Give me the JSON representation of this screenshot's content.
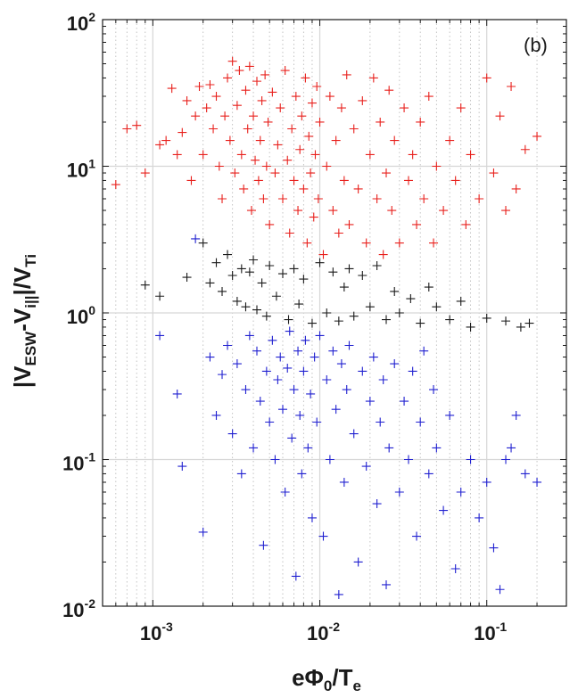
{
  "chart_data": {
    "type": "scatter",
    "title": "",
    "panel_label": "(b)",
    "xscale": "log",
    "yscale": "log",
    "xlim": [
      0.0005,
      0.3
    ],
    "ylim": [
      0.01,
      100
    ],
    "xticks": [
      {
        "base": "10",
        "exp": "-3",
        "value": 0.001
      },
      {
        "base": "10",
        "exp": "-2",
        "value": 0.01
      },
      {
        "base": "10",
        "exp": "-1",
        "value": 0.1
      }
    ],
    "yticks": [
      {
        "base": "10",
        "exp": "-2",
        "value": 0.01
      },
      {
        "base": "10",
        "exp": "-1",
        "value": 0.1
      },
      {
        "base": "10",
        "exp": "0",
        "value": 1
      },
      {
        "base": "10",
        "exp": "1",
        "value": 10
      },
      {
        "base": "10",
        "exp": "2",
        "value": 100
      }
    ],
    "xlabel": {
      "pre": "e",
      "phi": "Φ",
      "sub0": "0",
      "mid": "/T",
      "sube": "e"
    },
    "ylabel": {
      "bar1": "|V",
      "sub1": "ESW",
      "dash": "-V",
      "sub2": "i||",
      "bar2": "|/V",
      "sub3": "Ti"
    },
    "grid": true,
    "marker": "+",
    "series": [
      {
        "name": "red",
        "color": "#e8201c",
        "points": [
          [
            0.0006,
            7.5
          ],
          [
            0.0007,
            18
          ],
          [
            0.0008,
            19
          ],
          [
            0.0009,
            9
          ],
          [
            0.0011,
            14
          ],
          [
            0.0012,
            15
          ],
          [
            0.0013,
            34
          ],
          [
            0.0014,
            12
          ],
          [
            0.0015,
            17
          ],
          [
            0.0016,
            28
          ],
          [
            0.0017,
            8
          ],
          [
            0.0018,
            22
          ],
          [
            0.0019,
            35
          ],
          [
            0.002,
            12
          ],
          [
            0.0021,
            25
          ],
          [
            0.0022,
            36
          ],
          [
            0.0023,
            18
          ],
          [
            0.0024,
            30
          ],
          [
            0.0025,
            10
          ],
          [
            0.0026,
            6
          ],
          [
            0.0027,
            22
          ],
          [
            0.0028,
            40
          ],
          [
            0.0029,
            15
          ],
          [
            0.003,
            52
          ],
          [
            0.0031,
            9
          ],
          [
            0.0032,
            26
          ],
          [
            0.0033,
            45
          ],
          [
            0.0034,
            12
          ],
          [
            0.0035,
            7
          ],
          [
            0.0036,
            33
          ],
          [
            0.0037,
            18
          ],
          [
            0.0038,
            48
          ],
          [
            0.0039,
            5
          ],
          [
            0.004,
            22
          ],
          [
            0.0041,
            11
          ],
          [
            0.0042,
            38
          ],
          [
            0.0043,
            8
          ],
          [
            0.0044,
            15
          ],
          [
            0.0045,
            28
          ],
          [
            0.0046,
            6
          ],
          [
            0.0047,
            42
          ],
          [
            0.0048,
            10
          ],
          [
            0.0049,
            20
          ],
          [
            0.005,
            4
          ],
          [
            0.0052,
            32
          ],
          [
            0.0054,
            9
          ],
          [
            0.0056,
            14
          ],
          [
            0.0058,
            25
          ],
          [
            0.006,
            6
          ],
          [
            0.0062,
            45
          ],
          [
            0.0064,
            11
          ],
          [
            0.0066,
            3.5
          ],
          [
            0.0068,
            18
          ],
          [
            0.007,
            8
          ],
          [
            0.0072,
            30
          ],
          [
            0.0074,
            5
          ],
          [
            0.0076,
            13
          ],
          [
            0.0078,
            22
          ],
          [
            0.008,
            7
          ],
          [
            0.0082,
            40
          ],
          [
            0.0084,
            3
          ],
          [
            0.0086,
            16
          ],
          [
            0.0088,
            9
          ],
          [
            0.009,
            27
          ],
          [
            0.0092,
            4.5
          ],
          [
            0.0094,
            12
          ],
          [
            0.0096,
            35
          ],
          [
            0.0098,
            6
          ],
          [
            0.01,
            20
          ],
          [
            0.0105,
            2.5
          ],
          [
            0.011,
            10
          ],
          [
            0.0115,
            30
          ],
          [
            0.012,
            5
          ],
          [
            0.0125,
            15
          ],
          [
            0.013,
            3.5
          ],
          [
            0.0135,
            25
          ],
          [
            0.014,
            8
          ],
          [
            0.0145,
            42
          ],
          [
            0.015,
            4
          ],
          [
            0.016,
            18
          ],
          [
            0.017,
            7
          ],
          [
            0.018,
            28
          ],
          [
            0.019,
            3
          ],
          [
            0.02,
            12
          ],
          [
            0.021,
            40
          ],
          [
            0.022,
            6
          ],
          [
            0.023,
            20
          ],
          [
            0.024,
            2.5
          ],
          [
            0.025,
            9
          ],
          [
            0.026,
            33
          ],
          [
            0.027,
            5
          ],
          [
            0.028,
            15
          ],
          [
            0.03,
            3
          ],
          [
            0.032,
            25
          ],
          [
            0.034,
            8
          ],
          [
            0.036,
            12
          ],
          [
            0.038,
            4
          ],
          [
            0.04,
            20
          ],
          [
            0.042,
            6
          ],
          [
            0.045,
            30
          ],
          [
            0.048,
            3
          ],
          [
            0.05,
            10
          ],
          [
            0.055,
            5
          ],
          [
            0.06,
            15
          ],
          [
            0.065,
            8
          ],
          [
            0.07,
            25
          ],
          [
            0.075,
            4
          ],
          [
            0.08,
            12
          ],
          [
            0.09,
            6
          ],
          [
            0.1,
            40
          ],
          [
            0.11,
            9
          ],
          [
            0.12,
            22
          ],
          [
            0.13,
            5
          ],
          [
            0.14,
            35
          ],
          [
            0.15,
            7
          ],
          [
            0.17,
            13
          ],
          [
            0.2,
            16
          ]
        ]
      },
      {
        "name": "black",
        "color": "#1a1a1a",
        "points": [
          [
            0.0009,
            1.55
          ],
          [
            0.0011,
            1.3
          ],
          [
            0.0016,
            1.75
          ],
          [
            0.002,
            3.0
          ],
          [
            0.0022,
            1.6
          ],
          [
            0.0024,
            2.2
          ],
          [
            0.0026,
            1.4
          ],
          [
            0.0028,
            2.5
          ],
          [
            0.003,
            1.8
          ],
          [
            0.0032,
            1.2
          ],
          [
            0.0034,
            2.0
          ],
          [
            0.0036,
            1.1
          ],
          [
            0.0038,
            1.9
          ],
          [
            0.004,
            2.3
          ],
          [
            0.0042,
            1.05
          ],
          [
            0.0045,
            1.6
          ],
          [
            0.0048,
            0.95
          ],
          [
            0.005,
            2.1
          ],
          [
            0.0055,
            1.3
          ],
          [
            0.006,
            1.85
          ],
          [
            0.0065,
            0.9
          ],
          [
            0.007,
            2.0
          ],
          [
            0.0075,
            1.15
          ],
          [
            0.008,
            1.7
          ],
          [
            0.009,
            0.85
          ],
          [
            0.01,
            2.2
          ],
          [
            0.011,
            1.0
          ],
          [
            0.012,
            1.9
          ],
          [
            0.013,
            0.88
          ],
          [
            0.014,
            1.5
          ],
          [
            0.015,
            2.0
          ],
          [
            0.016,
            0.95
          ],
          [
            0.018,
            1.8
          ],
          [
            0.02,
            1.1
          ],
          [
            0.022,
            2.1
          ],
          [
            0.025,
            0.9
          ],
          [
            0.028,
            1.4
          ],
          [
            0.03,
            1.0
          ],
          [
            0.035,
            1.25
          ],
          [
            0.04,
            0.85
          ],
          [
            0.045,
            1.5
          ],
          [
            0.05,
            1.1
          ],
          [
            0.06,
            0.9
          ],
          [
            0.07,
            1.2
          ],
          [
            0.08,
            0.8
          ],
          [
            0.1,
            0.92
          ],
          [
            0.13,
            0.88
          ],
          [
            0.16,
            0.8
          ],
          [
            0.18,
            0.85
          ]
        ]
      },
      {
        "name": "blue",
        "color": "#2020d0",
        "points": [
          [
            0.0011,
            0.7
          ],
          [
            0.0014,
            0.28
          ],
          [
            0.0015,
            0.09
          ],
          [
            0.0018,
            3.2
          ],
          [
            0.002,
            0.032
          ],
          [
            0.0022,
            0.5
          ],
          [
            0.0024,
            0.2
          ],
          [
            0.0026,
            0.38
          ],
          [
            0.0028,
            0.6
          ],
          [
            0.003,
            0.15
          ],
          [
            0.0032,
            0.45
          ],
          [
            0.0034,
            0.08
          ],
          [
            0.0036,
            0.3
          ],
          [
            0.0038,
            0.7
          ],
          [
            0.004,
            0.12
          ],
          [
            0.0042,
            0.55
          ],
          [
            0.0044,
            0.25
          ],
          [
            0.0046,
            0.026
          ],
          [
            0.0048,
            0.4
          ],
          [
            0.005,
            0.18
          ],
          [
            0.0052,
            0.65
          ],
          [
            0.0054,
            0.1
          ],
          [
            0.0056,
            0.35
          ],
          [
            0.0058,
            0.5
          ],
          [
            0.006,
            0.22
          ],
          [
            0.0062,
            0.06
          ],
          [
            0.0064,
            0.42
          ],
          [
            0.0066,
            0.75
          ],
          [
            0.0068,
            0.14
          ],
          [
            0.007,
            0.3
          ],
          [
            0.0072,
            0.016
          ],
          [
            0.0074,
            0.55
          ],
          [
            0.0076,
            0.2
          ],
          [
            0.0078,
            0.08
          ],
          [
            0.008,
            0.4
          ],
          [
            0.0082,
            0.65
          ],
          [
            0.0085,
            0.12
          ],
          [
            0.0088,
            0.28
          ],
          [
            0.009,
            0.04
          ],
          [
            0.0093,
            0.5
          ],
          [
            0.0096,
            0.18
          ],
          [
            0.01,
            0.7
          ],
          [
            0.0105,
            0.03
          ],
          [
            0.011,
            0.35
          ],
          [
            0.0115,
            0.1
          ],
          [
            0.012,
            0.55
          ],
          [
            0.0125,
            0.22
          ],
          [
            0.013,
            0.012
          ],
          [
            0.0135,
            0.45
          ],
          [
            0.014,
            0.07
          ],
          [
            0.0145,
            0.3
          ],
          [
            0.015,
            0.6
          ],
          [
            0.016,
            0.15
          ],
          [
            0.017,
            0.02
          ],
          [
            0.018,
            0.4
          ],
          [
            0.019,
            0.09
          ],
          [
            0.02,
            0.25
          ],
          [
            0.021,
            0.5
          ],
          [
            0.022,
            0.05
          ],
          [
            0.023,
            0.18
          ],
          [
            0.024,
            0.35
          ],
          [
            0.025,
            0.014
          ],
          [
            0.026,
            0.12
          ],
          [
            0.028,
            0.45
          ],
          [
            0.03,
            0.06
          ],
          [
            0.032,
            0.25
          ],
          [
            0.034,
            0.1
          ],
          [
            0.036,
            0.4
          ],
          [
            0.038,
            0.03
          ],
          [
            0.04,
            0.18
          ],
          [
            0.042,
            0.55
          ],
          [
            0.045,
            0.08
          ],
          [
            0.048,
            0.3
          ],
          [
            0.05,
            0.12
          ],
          [
            0.055,
            0.045
          ],
          [
            0.06,
            0.2
          ],
          [
            0.065,
            0.018
          ],
          [
            0.07,
            0.06
          ],
          [
            0.08,
            0.1
          ],
          [
            0.09,
            0.04
          ],
          [
            0.1,
            0.07
          ],
          [
            0.11,
            0.025
          ],
          [
            0.12,
            0.013
          ],
          [
            0.13,
            0.1
          ],
          [
            0.14,
            0.12
          ],
          [
            0.15,
            0.2
          ],
          [
            0.17,
            0.08
          ],
          [
            0.2,
            0.07
          ]
        ]
      }
    ]
  }
}
